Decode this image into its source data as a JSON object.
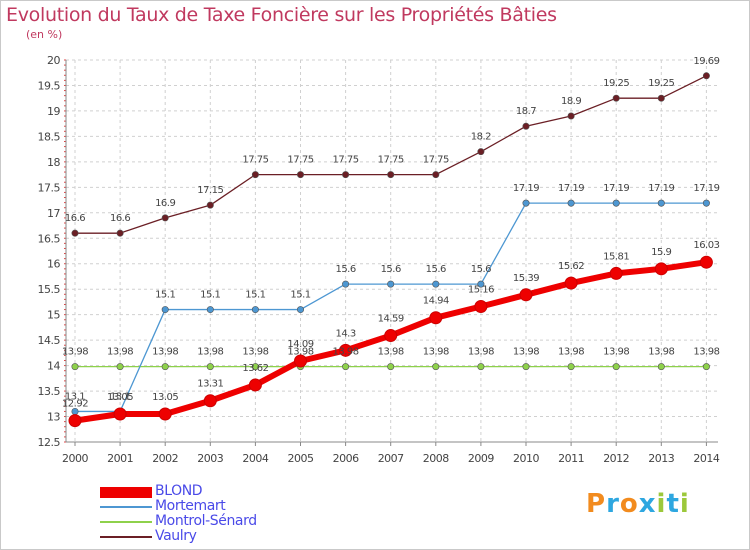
{
  "chart_data": {
    "type": "line",
    "title": "Evolution du Taux de Taxe Foncière sur les Propriétés Bâties",
    "subtitle": "(en %)",
    "categories": [
      "2000",
      "2001",
      "2002",
      "2003",
      "2004",
      "2005",
      "2006",
      "2007",
      "2008",
      "2009",
      "2010",
      "2011",
      "2012",
      "2013",
      "2014"
    ],
    "ylim": [
      12.5,
      20
    ],
    "yticks": [
      "12.5",
      "13",
      "13.5",
      "14",
      "14.5",
      "15",
      "15.5",
      "16",
      "16.5",
      "17",
      "17.5",
      "18",
      "18.5",
      "19",
      "19.5",
      "20"
    ],
    "grid": true,
    "series": [
      {
        "name": "BLOND",
        "color": "#ee0000",
        "labels": [
          "12.92",
          "13.05",
          "13.05",
          "13.31",
          "13.62",
          "14.09",
          "14.3",
          "14.59",
          "14.94",
          "15.16",
          "15.39",
          "15.62",
          "15.81",
          "15.9",
          "16.03"
        ],
        "values": [
          12.92,
          13.05,
          13.05,
          13.31,
          13.62,
          14.09,
          14.3,
          14.59,
          14.94,
          15.16,
          15.39,
          15.62,
          15.81,
          15.9,
          16.03
        ]
      },
      {
        "name": "Mortemart",
        "color": "#4d97d2",
        "labels": [
          "13.1",
          "13.1",
          "15.1",
          "15.1",
          "15.1",
          "15.1",
          "15.6",
          "15.6",
          "15.6",
          "15.6",
          "17.19",
          "17.19",
          "17.19",
          "17.19",
          "17.19"
        ],
        "values": [
          13.1,
          13.1,
          15.1,
          15.1,
          15.1,
          15.1,
          15.6,
          15.6,
          15.6,
          15.6,
          17.19,
          17.19,
          17.19,
          17.19,
          17.19
        ]
      },
      {
        "name": "Montrol-Sénard",
        "color": "#8ed14b",
        "labels": [
          "13.98",
          "13.98",
          "13.98",
          "13.98",
          "13.98",
          "13.98",
          "13.98",
          "13.98",
          "13.98",
          "13.98",
          "13.98",
          "13.98",
          "13.98",
          "13.98",
          "13.98"
        ],
        "values": [
          13.98,
          13.98,
          13.98,
          13.98,
          13.98,
          13.98,
          13.98,
          13.98,
          13.98,
          13.98,
          13.98,
          13.98,
          13.98,
          13.98,
          13.98
        ]
      },
      {
        "name": "Vaulry",
        "color": "#6b1f25",
        "labels": [
          "16.6",
          "16.6",
          "16.9",
          "17.15",
          "17.75",
          "17.75",
          "17.75",
          "17.75",
          "17.75",
          "18.2",
          "18.7",
          "18.9",
          "19.25",
          "19.25",
          "19.69"
        ],
        "values": [
          16.6,
          16.6,
          16.9,
          17.15,
          17.75,
          17.75,
          17.75,
          17.75,
          17.75,
          18.2,
          18.7,
          18.9,
          19.25,
          19.25,
          19.69
        ]
      }
    ]
  },
  "logo": {
    "text": "Proxiti",
    "letters": [
      "P",
      "r",
      "o",
      "x",
      "i",
      "t",
      "i"
    ],
    "colors": [
      "#f28b1e",
      "#2ea7e0",
      "#f28b1e",
      "#2ea7e0",
      "#9cc83b",
      "#2ea7e0",
      "#9cc83b"
    ]
  }
}
